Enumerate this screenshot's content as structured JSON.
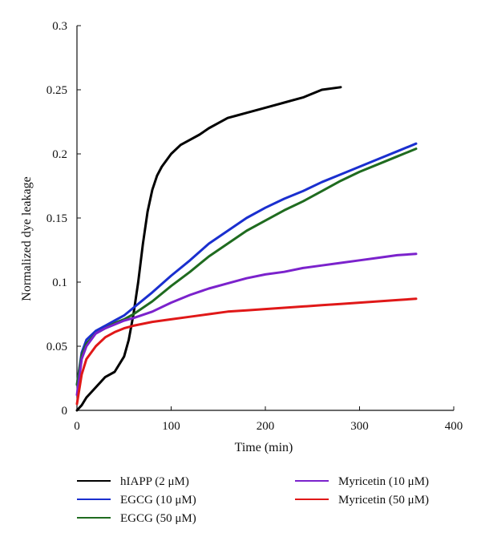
{
  "chart_data": {
    "type": "line",
    "title": "",
    "xlabel": "Time (min)",
    "ylabel": "Normalized dye leakage",
    "xlim": [
      0,
      400
    ],
    "ylim": [
      0,
      0.3
    ],
    "xticks": [
      0,
      100,
      200,
      300,
      400
    ],
    "yticks": [
      0,
      0.05,
      0.1,
      0.15,
      0.2,
      0.25,
      0.3
    ],
    "xtick_labels": [
      "0",
      "100",
      "200",
      "300",
      "400"
    ],
    "ytick_labels": [
      "0",
      "0.05",
      "0.1",
      "0.15",
      "0.2",
      "0.25",
      "0.3"
    ],
    "grid": false,
    "legend_position": "bottom",
    "series": [
      {
        "name": "hIAPP (2 μM)",
        "color": "#000000",
        "x": [
          0,
          5,
          10,
          20,
          30,
          40,
          50,
          55,
          60,
          65,
          70,
          75,
          80,
          85,
          90,
          100,
          110,
          120,
          130,
          140,
          150,
          160,
          170,
          180,
          200,
          220,
          240,
          260,
          280
        ],
        "y": [
          0,
          0.004,
          0.01,
          0.018,
          0.026,
          0.03,
          0.042,
          0.055,
          0.075,
          0.1,
          0.13,
          0.155,
          0.172,
          0.183,
          0.19,
          0.2,
          0.207,
          0.211,
          0.215,
          0.22,
          0.224,
          0.228,
          0.23,
          0.232,
          0.236,
          0.24,
          0.244,
          0.25,
          0.252
        ]
      },
      {
        "name": "EGCG (10 μM)",
        "color": "#1a2fcf",
        "x": [
          0,
          5,
          10,
          20,
          30,
          40,
          50,
          60,
          80,
          100,
          120,
          140,
          160,
          180,
          200,
          220,
          240,
          260,
          280,
          300,
          320,
          340,
          360
        ],
        "y": [
          0.02,
          0.045,
          0.055,
          0.062,
          0.066,
          0.07,
          0.074,
          0.08,
          0.092,
          0.105,
          0.117,
          0.13,
          0.14,
          0.15,
          0.158,
          0.165,
          0.171,
          0.178,
          0.184,
          0.19,
          0.196,
          0.202,
          0.208
        ]
      },
      {
        "name": "EGCG (50 μM)",
        "color": "#1f6b1f",
        "x": [
          0,
          5,
          10,
          20,
          30,
          40,
          50,
          60,
          80,
          100,
          120,
          140,
          160,
          180,
          200,
          220,
          240,
          260,
          280,
          300,
          320,
          340,
          360
        ],
        "y": [
          0.02,
          0.043,
          0.052,
          0.06,
          0.064,
          0.068,
          0.071,
          0.075,
          0.085,
          0.097,
          0.108,
          0.12,
          0.13,
          0.14,
          0.148,
          0.156,
          0.163,
          0.171,
          0.179,
          0.186,
          0.192,
          0.198,
          0.204
        ]
      },
      {
        "name": "Myricetin (10 μM)",
        "color": "#7b22cc",
        "x": [
          0,
          5,
          10,
          20,
          30,
          40,
          50,
          60,
          80,
          100,
          120,
          140,
          160,
          180,
          200,
          220,
          240,
          260,
          280,
          300,
          320,
          340,
          360
        ],
        "y": [
          0.012,
          0.04,
          0.05,
          0.06,
          0.064,
          0.067,
          0.07,
          0.072,
          0.077,
          0.084,
          0.09,
          0.095,
          0.099,
          0.103,
          0.106,
          0.108,
          0.111,
          0.113,
          0.115,
          0.117,
          0.119,
          0.121,
          0.122
        ]
      },
      {
        "name": "Myricetin (50 μM)",
        "color": "#e01818",
        "x": [
          0,
          5,
          10,
          20,
          30,
          40,
          50,
          60,
          80,
          100,
          120,
          140,
          160,
          180,
          200,
          220,
          240,
          260,
          280,
          300,
          320,
          340,
          360
        ],
        "y": [
          0.005,
          0.028,
          0.04,
          0.05,
          0.057,
          0.061,
          0.064,
          0.066,
          0.069,
          0.071,
          0.073,
          0.075,
          0.077,
          0.078,
          0.079,
          0.08,
          0.081,
          0.082,
          0.083,
          0.084,
          0.085,
          0.086,
          0.087
        ]
      }
    ],
    "legend_layout": [
      {
        "series": 0,
        "col": 0,
        "row": 0
      },
      {
        "series": 1,
        "col": 0,
        "row": 1
      },
      {
        "series": 2,
        "col": 0,
        "row": 2
      },
      {
        "series": 3,
        "col": 1,
        "row": 0
      },
      {
        "series": 4,
        "col": 1,
        "row": 1
      }
    ]
  }
}
